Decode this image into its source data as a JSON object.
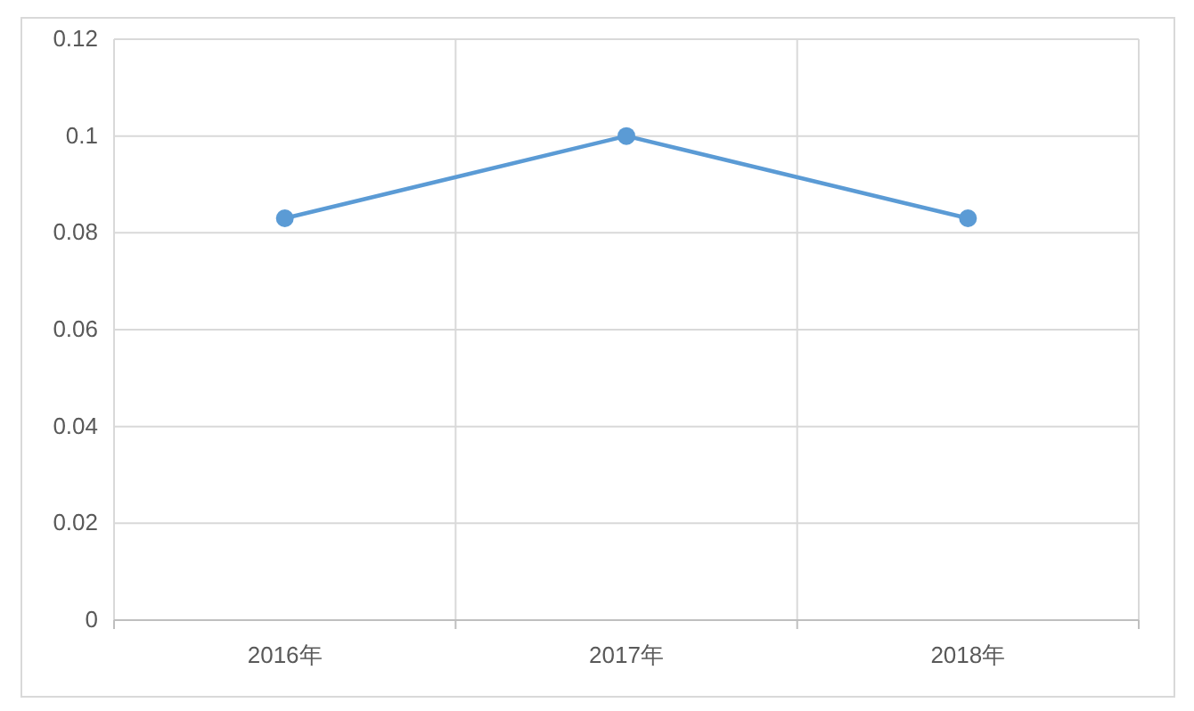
{
  "chart_data": {
    "type": "line",
    "categories": [
      "2016年",
      "2017年",
      "2018年"
    ],
    "series": [
      {
        "color": "#5b9bd5",
        "values": [
          0.083,
          0.1,
          0.083
        ]
      }
    ],
    "ylim": [
      0,
      0.12
    ],
    "yticks": [
      0,
      0.02,
      0.04,
      0.06,
      0.08,
      0.1,
      0.12
    ],
    "grid": true,
    "marker": "circle",
    "line_style": "solid"
  }
}
